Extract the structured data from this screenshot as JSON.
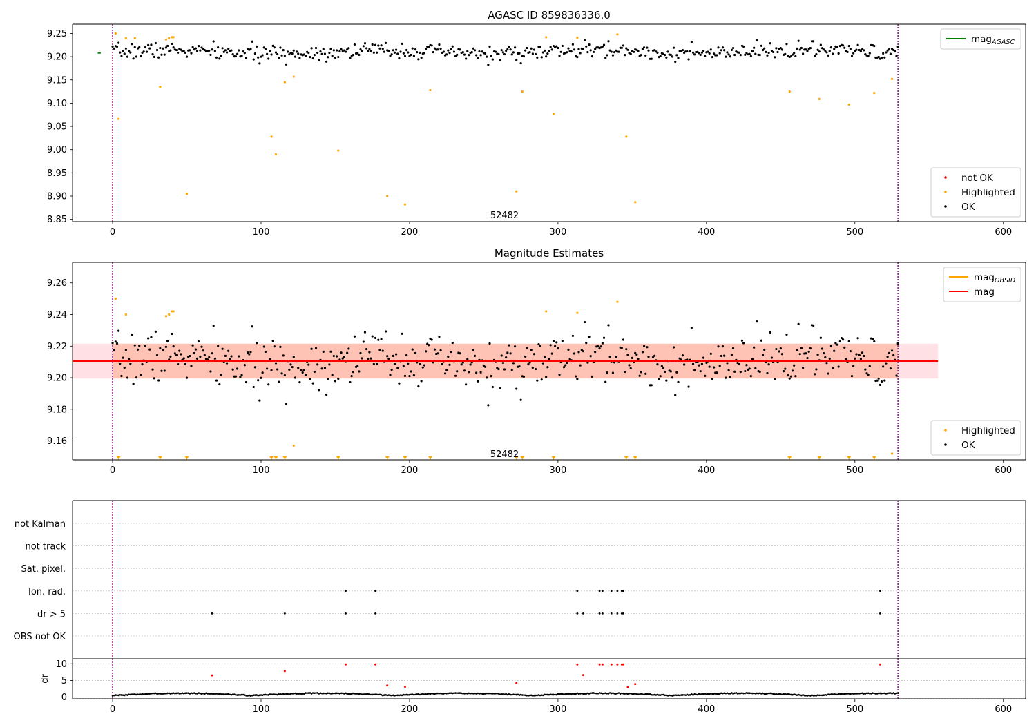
{
  "chart_data": [
    {
      "type": "scatter",
      "title": "AGASC ID 859836336.0",
      "xlim": [
        -27,
        615
      ],
      "ylim": [
        8.845,
        9.27
      ],
      "xticks": [
        0,
        100,
        200,
        300,
        400,
        500,
        600
      ],
      "yticks": [
        8.85,
        8.9,
        8.95,
        9.0,
        9.05,
        9.1,
        9.15,
        9.2,
        9.25
      ],
      "ytick_format": 2,
      "grid": false,
      "obsid_label": {
        "text": "52482",
        "x": 264,
        "y": 8.86
      },
      "obsid_bounds": [
        0,
        529
      ],
      "lines": [
        {
          "name": "mag_AGASC",
          "color": "#008000",
          "y": 9.208,
          "x": [
            -10,
            -8
          ]
        }
      ],
      "legend_top": {
        "placement": "top-right",
        "entries": [
          {
            "label": "mag",
            "sub": "AGASC",
            "color": "#008000",
            "kind": "line"
          }
        ]
      },
      "legend_bottom": {
        "placement": "bottom-right",
        "entries": [
          {
            "label": "not OK",
            "color": "#ff0000",
            "kind": "dot"
          },
          {
            "label": "Highlighted",
            "color": "#ffa500",
            "kind": "dot"
          },
          {
            "label": "OK",
            "color": "#000000",
            "kind": "dot"
          }
        ]
      },
      "series": [
        {
          "name": "Highlighted",
          "color": "#ffa500",
          "x": [
            2,
            4,
            9,
            15,
            32,
            36,
            38,
            40,
            41,
            50,
            107,
            110,
            116,
            122,
            152,
            185,
            197,
            214,
            272,
            276,
            292,
            297,
            313,
            340,
            346,
            352,
            456,
            476,
            496,
            513,
            525
          ],
          "y": [
            9.25,
            9.066,
            9.24,
            9.24,
            9.135,
            9.237,
            9.24,
            9.242,
            9.242,
            8.905,
            9.028,
            8.99,
            9.145,
            9.157,
            8.998,
            8.9,
            8.882,
            9.128,
            8.91,
            9.125,
            9.242,
            9.077,
            9.241,
            9.248,
            9.028,
            8.887,
            9.125,
            9.109,
            9.097,
            9.122,
            9.152
          ]
        },
        {
          "name": "OK",
          "color": "#000000",
          "seed": 7,
          "n": 530,
          "center": 9.21,
          "spread": 0.011,
          "xmin": 0,
          "xmax": 529
        }
      ]
    },
    {
      "type": "scatter",
      "title": "Magnitude Estimates",
      "xlim": [
        -27,
        615
      ],
      "ylim": [
        9.148,
        9.273
      ],
      "xticks": [
        0,
        100,
        200,
        300,
        400,
        500,
        600
      ],
      "yticks": [
        9.16,
        9.18,
        9.2,
        9.22,
        9.24,
        9.26
      ],
      "ytick_format": 2,
      "grid": false,
      "obsid_label": {
        "text": "52482",
        "x": 264,
        "y": 9.152
      },
      "obsid_bounds": [
        0,
        529
      ],
      "bands": [
        {
          "color": "#ffb6c1",
          "alpha": 0.42,
          "x": [
            -27,
            556
          ],
          "y": [
            9.1995,
            9.2215
          ]
        },
        {
          "color": "#ffa07a",
          "alpha": 0.45,
          "x": [
            0,
            529
          ],
          "y": [
            9.1995,
            9.2215
          ]
        }
      ],
      "lines": [
        {
          "name": "mag_OBSID",
          "color": "#ffa500",
          "y": 9.2105,
          "x": [
            0,
            529
          ]
        },
        {
          "name": "mag",
          "color": "#ff0000",
          "y": 9.2105,
          "x": [
            -27,
            556
          ]
        }
      ],
      "legend_top": {
        "placement": "top-right",
        "entries": [
          {
            "label": "mag",
            "sub": "OBSID",
            "color": "#ffa500",
            "kind": "line"
          },
          {
            "label": "mag",
            "sub": "",
            "color": "#ff0000",
            "kind": "line"
          }
        ]
      },
      "legend_bottom": {
        "placement": "bottom-right",
        "entries": [
          {
            "label": "Highlighted",
            "color": "#ffa500",
            "kind": "dot"
          },
          {
            "label": "OK",
            "color": "#000000",
            "kind": "dot"
          }
        ]
      },
      "series": [
        {
          "name": "Highlighted",
          "color": "#ffa500",
          "x": [
            2,
            9,
            36,
            38,
            40,
            41,
            122,
            292,
            313,
            340,
            525
          ],
          "y": [
            9.25,
            9.24,
            9.239,
            9.24,
            9.242,
            9.242,
            9.157,
            9.242,
            9.241,
            9.248,
            9.152
          ]
        },
        {
          "name": "Highlighted (out of range)",
          "color": "#ffa500",
          "marker": "triangle-down",
          "x": [
            4,
            32,
            50,
            107,
            110,
            116,
            152,
            185,
            197,
            214,
            272,
            276,
            297,
            346,
            352,
            456,
            476,
            496,
            513
          ],
          "y": [
            9.149,
            9.149,
            9.149,
            9.149,
            9.149,
            9.149,
            9.149,
            9.149,
            9.149,
            9.149,
            9.149,
            9.149,
            9.149,
            9.149,
            9.149,
            9.149,
            9.149,
            9.149,
            9.149
          ]
        },
        {
          "name": "OK",
          "color": "#000000",
          "seed": 7,
          "n": 530,
          "center": 9.21,
          "spread": 0.011,
          "xmin": 0,
          "xmax": 529
        }
      ]
    },
    {
      "type": "scatter",
      "title": "",
      "xlim": [
        -27,
        615
      ],
      "flags": [
        "not Kalman",
        "not track",
        "Sat. pixel.",
        "Ion. rad.",
        "dr > 5",
        "OBS not OK"
      ],
      "obsid_bounds": [
        0,
        529
      ],
      "flag_points": {
        "not Kalman": [],
        "not track": [],
        "Sat. pixel.": [],
        "Ion. rad.": [
          157,
          177,
          313,
          328,
          330,
          336,
          340,
          343,
          344,
          517
        ],
        "dr > 5": [
          67,
          116,
          157,
          177,
          313,
          317,
          328,
          330,
          336,
          340,
          343,
          344,
          517
        ],
        "OBS not OK": []
      }
    },
    {
      "type": "scatter",
      "title": "",
      "ylabel": "dr",
      "xlim": [
        -27,
        615
      ],
      "ylim": [
        -0.5,
        11.5
      ],
      "xticks": [
        0,
        100,
        200,
        300,
        400,
        500,
        600
      ],
      "yticks": [
        0,
        5,
        10
      ],
      "ytick_format": 0,
      "grid": true,
      "obsid_bounds": [
        0,
        529
      ],
      "series": [
        {
          "name": "not OK",
          "color": "#ff0000",
          "x": [
            67,
            116,
            157,
            177,
            185,
            197,
            272,
            313,
            317,
            328,
            330,
            336,
            340,
            343,
            344,
            347,
            352,
            517
          ],
          "y": [
            6.5,
            7.8,
            9.8,
            9.8,
            3.5,
            3.1,
            4.2,
            9.8,
            6.6,
            9.8,
            9.8,
            9.8,
            9.8,
            9.8,
            9.8,
            3.0,
            3.9,
            9.8
          ]
        },
        {
          "name": "OK",
          "color": "#000000",
          "seed": 3,
          "n": 530,
          "xmin": 0,
          "xmax": 529,
          "kind": "dr"
        }
      ]
    }
  ]
}
